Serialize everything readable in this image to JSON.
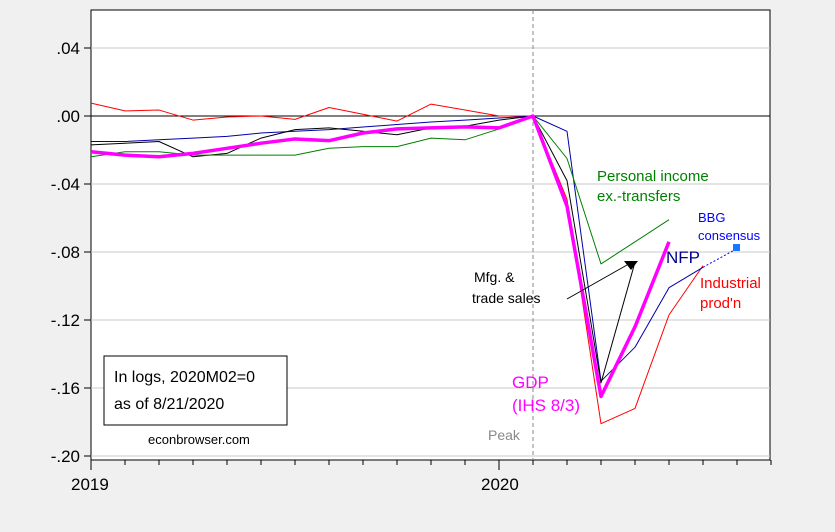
{
  "chart_data": {
    "type": "line",
    "title": "",
    "xlabel": "",
    "ylabel": "",
    "x": [
      "2019M01",
      "2019M02",
      "2019M03",
      "2019M04",
      "2019M05",
      "2019M06",
      "2019M07",
      "2019M08",
      "2019M09",
      "2019M10",
      "2019M11",
      "2019M12",
      "2020M01",
      "2020M02",
      "2020M03",
      "2020M04",
      "2020M05",
      "2020M06",
      "2020M07",
      "2020M08"
    ],
    "ylim": [
      -0.2,
      0.04
    ],
    "yticks": [
      ".04",
      ".00",
      "-.04",
      "-.08",
      "-.12",
      "-.16",
      "-.20"
    ],
    "ytick_values": [
      0.04,
      0.0,
      -0.04,
      -0.08,
      -0.12,
      -0.16,
      -0.2
    ],
    "xticks": [
      "2019",
      "2020"
    ],
    "grid": true,
    "series": [
      {
        "name": "Industrial prod'n",
        "color": "#ff0000",
        "width": 1,
        "values": [
          0.0076,
          0.003,
          0.0035,
          -0.0024,
          -0.0006,
          0,
          -0.002,
          0.005,
          0.001,
          -0.003,
          0.007,
          0.0035,
          0,
          0,
          -0.049,
          -0.181,
          -0.172,
          -0.117,
          -0.088,
          null
        ]
      },
      {
        "name": "NFP",
        "color": "#0000aa",
        "width": 1,
        "values": [
          -0.015,
          -0.015,
          -0.014,
          -0.013,
          -0.012,
          -0.01,
          -0.009,
          -0.008,
          -0.0065,
          -0.005,
          -0.0035,
          -0.0024,
          -0.0012,
          0,
          -0.009,
          -0.156,
          -0.136,
          -0.101,
          -0.089,
          null
        ]
      },
      {
        "name": "Mfg. & trade sales",
        "color": "#000000",
        "width": 1,
        "values": [
          -0.017,
          -0.016,
          -0.015,
          -0.024,
          -0.022,
          -0.013,
          -0.008,
          -0.007,
          -0.009,
          -0.011,
          -0.007,
          -0.006,
          -0.0024,
          0,
          -0.038,
          -0.157,
          -0.086,
          null,
          null,
          null
        ]
      },
      {
        "name": "Personal income ex.-transfers",
        "color": "#008000",
        "width": 1,
        "values": [
          -0.024,
          -0.021,
          -0.021,
          -0.023,
          -0.023,
          -0.023,
          -0.023,
          -0.019,
          -0.018,
          -0.018,
          -0.013,
          -0.014,
          -0.0076,
          0,
          -0.025,
          -0.087,
          -0.074,
          -0.061,
          null,
          null
        ]
      },
      {
        "name": "GDP (IHS 8/3)",
        "color": "#ff00ff",
        "width": 3.5,
        "values": [
          -0.021,
          -0.023,
          -0.024,
          -0.022,
          -0.019,
          -0.016,
          -0.0135,
          -0.0145,
          -0.01,
          -0.0076,
          -0.007,
          -0.0064,
          -0.007,
          0,
          -0.053,
          -0.165,
          -0.124,
          -0.074,
          null,
          null
        ]
      },
      {
        "name": "BBG consensus",
        "color": "#0000ff",
        "width": 1,
        "dotted": true,
        "values": [
          null,
          null,
          null,
          null,
          null,
          null,
          null,
          null,
          null,
          null,
          null,
          null,
          null,
          null,
          null,
          null,
          null,
          null,
          -0.089,
          -0.078
        ]
      }
    ],
    "annotations": {
      "pi1": "Personal income",
      "pi2": "ex.-transfers",
      "bbg1": "BBG",
      "bbg2": "consensus",
      "nfp": "NFP",
      "ip1": "Industrial",
      "ip2": "prod'n",
      "mts1": "Mfg. &",
      "mts2": "trade sales",
      "gdp1": "GDP",
      "gdp2": "(IHS 8/3)",
      "peak": "Peak",
      "note1": "In logs, 2020M02=0",
      "note2": "as of 8/21/2020",
      "source": "econbrowser.com"
    }
  }
}
